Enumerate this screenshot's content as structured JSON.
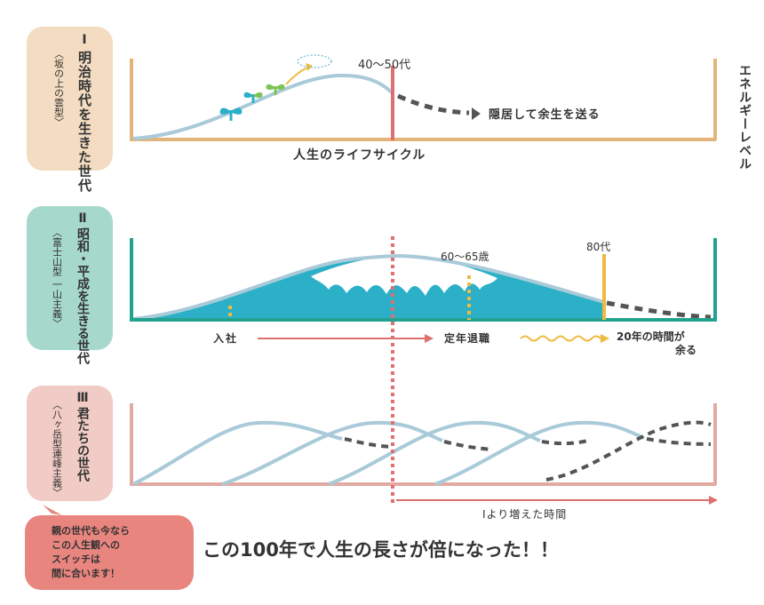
{
  "colors": {
    "era1": "#e2b47c",
    "era1_bg": "#f3dcc1",
    "era2": "#22a38f",
    "era2_bg": "#a6d9cc",
    "era3": "#e3aaa3",
    "era3_bg": "#f1cbc5",
    "curve": "#a9cad8",
    "fill": "#2bb0c8",
    "red": "#e07070",
    "yellow": "#eebb40",
    "dash": "#555555",
    "text": "#333333"
  },
  "side_label": "エネルギーレベル",
  "panel1": {
    "numeral": "Ⅰ",
    "title": "明治時代を生きた世代",
    "subtitle": "〈坂の上の雲型〉",
    "peak_label": "40〜50代",
    "after_label": "隠居して余生を送る",
    "axis_label": "人生のライフサイクル",
    "icon_names": [
      "sprout-icon",
      "sprout-icon",
      "sprout-icon",
      "cloud-icon"
    ]
  },
  "panel2": {
    "numeral": "Ⅱ",
    "title": "昭和・平成を生きる世代",
    "subtitle": "〈富士山型 一山主義〉",
    "retire_age_label": "60〜65歳",
    "death_age_label": "80代",
    "start_label": "入社",
    "retire_label": "定年退職",
    "surplus_label_line1": "20年の時間が",
    "surplus_label_line2": "余る"
  },
  "panel3": {
    "numeral": "Ⅲ",
    "title": "君たちの世代",
    "subtitle": "〈八ヶ岳型連峰主義〉",
    "extra_time_label": "Ⅰより増えた時間"
  },
  "note": {
    "lines": [
      "親の世代も今なら",
      "この人生観への",
      "スイッチは",
      "間に合います！"
    ]
  },
  "headline": "この100年で人生の長さが倍になった！！"
}
